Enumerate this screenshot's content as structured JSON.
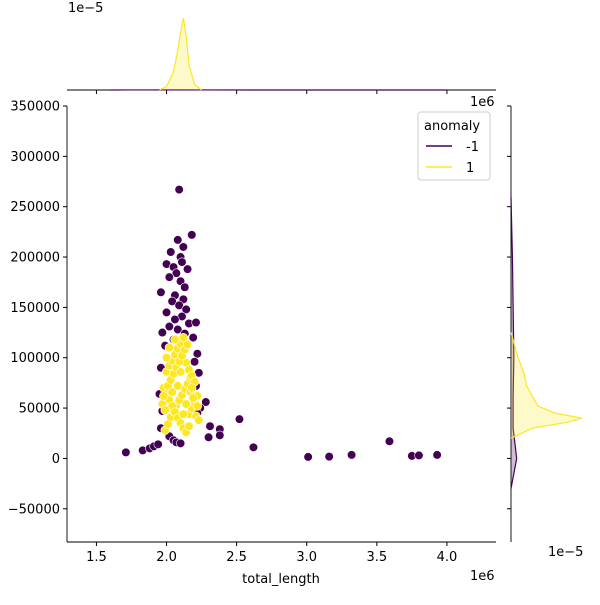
{
  "chart_data": {
    "type": "scatter",
    "subtype": "jointplot",
    "title": "",
    "xlabel": "total_length",
    "ylabel": "",
    "x_offset_label": "1e6",
    "y_offset_label_right": "1e6",
    "top_marginal_offset_label": "1e−5",
    "right_marginal_offset_label": "1e−5",
    "xlim": [
      1.29,
      4.35
    ],
    "ylim": [
      -83000,
      350000
    ],
    "xticks": [
      1.5,
      2.0,
      2.5,
      3.0,
      3.5,
      4.0
    ],
    "xtick_labels": [
      "1.5",
      "2.0",
      "2.5",
      "3.0",
      "3.5",
      "4.0"
    ],
    "yticks": [
      -50000,
      0,
      50000,
      100000,
      150000,
      200000,
      250000,
      300000,
      350000
    ],
    "ytick_labels": [
      "−50000",
      "0",
      "50000",
      "100000",
      "150000",
      "200000",
      "250000",
      "300000",
      "350000"
    ],
    "grid": false,
    "legend": {
      "title": "anomaly",
      "placement": "top-right",
      "entries": [
        {
          "label": "-1",
          "color": "#440154"
        },
        {
          "label": "1",
          "color": "#fde725"
        }
      ]
    },
    "series": [
      {
        "name": "-1",
        "color": "#440154",
        "points": [
          [
            1.71,
            6000
          ],
          [
            1.83,
            8000
          ],
          [
            1.88,
            10000
          ],
          [
            1.91,
            12000
          ],
          [
            1.94,
            14000
          ],
          [
            2.09,
            267000
          ],
          [
            2.18,
            222000
          ],
          [
            2.08,
            217000
          ],
          [
            2.12,
            210000
          ],
          [
            2.03,
            205000
          ],
          [
            2.1,
            200000
          ],
          [
            2.0,
            193000
          ],
          [
            2.11,
            195000
          ],
          [
            2.05,
            190000
          ],
          [
            2.15,
            188000
          ],
          [
            2.07,
            184000
          ],
          [
            2.02,
            180000
          ],
          [
            2.1,
            176000
          ],
          [
            2.13,
            170000
          ],
          [
            1.96,
            165000
          ],
          [
            2.06,
            162000
          ],
          [
            2.12,
            158000
          ],
          [
            2.04,
            156000
          ],
          [
            2.09,
            152000
          ],
          [
            2.14,
            148000
          ],
          [
            2.0,
            145000
          ],
          [
            2.11,
            141000
          ],
          [
            2.06,
            138000
          ],
          [
            2.16,
            134000
          ],
          [
            2.21,
            135000
          ],
          [
            2.02,
            131000
          ],
          [
            2.08,
            128000
          ],
          [
            1.97,
            125000
          ],
          [
            2.13,
            124000
          ],
          [
            2.19,
            120000
          ],
          [
            2.05,
            118000
          ],
          [
            1.99,
            112000
          ],
          [
            2.22,
            104000
          ],
          [
            2.2,
            96000
          ],
          [
            1.96,
            90000
          ],
          [
            2.23,
            85000
          ],
          [
            2.21,
            72000
          ],
          [
            1.95,
            64000
          ],
          [
            2.28,
            56000
          ],
          [
            2.24,
            50000
          ],
          [
            1.97,
            47000
          ],
          [
            2.22,
            45000
          ],
          [
            1.96,
            30000
          ],
          [
            2.02,
            22000
          ],
          [
            2.05,
            18000
          ],
          [
            2.07,
            16000
          ],
          [
            2.1,
            15000
          ],
          [
            2.31,
            32000
          ],
          [
            2.3,
            21000
          ],
          [
            2.38,
            29000
          ],
          [
            2.38,
            23000
          ],
          [
            2.52,
            39000
          ],
          [
            2.62,
            11000
          ],
          [
            3.01,
            1500
          ],
          [
            3.16,
            1800
          ],
          [
            3.32,
            3500
          ],
          [
            3.59,
            17000
          ],
          [
            3.75,
            2500
          ],
          [
            3.8,
            3000
          ],
          [
            3.93,
            3500
          ]
        ]
      },
      {
        "name": "1",
        "color": "#fde725",
        "points": [
          [
            1.99,
            28000
          ],
          [
            2.01,
            34000
          ],
          [
            2.03,
            41000
          ],
          [
            2.05,
            47000
          ],
          [
            2.07,
            53000
          ],
          [
            2.09,
            58000
          ],
          [
            2.11,
            63000
          ],
          [
            2.13,
            69000
          ],
          [
            2.15,
            74000
          ],
          [
            2.17,
            80000
          ],
          [
            2.0,
            86000
          ],
          [
            2.02,
            92000
          ],
          [
            2.04,
            97000
          ],
          [
            2.06,
            103000
          ],
          [
            2.08,
            109000
          ],
          [
            2.1,
            114000
          ],
          [
            2.12,
            120000
          ],
          [
            2.14,
            95000
          ],
          [
            2.16,
            88000
          ],
          [
            2.18,
            82000
          ],
          [
            2.2,
            76000
          ],
          [
            1.98,
            70000
          ],
          [
            2.0,
            64000
          ],
          [
            2.02,
            58000
          ],
          [
            2.04,
            52000
          ],
          [
            2.06,
            46000
          ],
          [
            2.08,
            40000
          ],
          [
            2.1,
            35000
          ],
          [
            2.12,
            30000
          ],
          [
            2.14,
            26000
          ],
          [
            2.16,
            44000
          ],
          [
            2.18,
            50000
          ],
          [
            2.2,
            56000
          ],
          [
            2.22,
            62000
          ],
          [
            1.97,
            54000
          ],
          [
            1.99,
            48000
          ],
          [
            2.01,
            72000
          ],
          [
            2.03,
            78000
          ],
          [
            2.05,
            84000
          ],
          [
            2.07,
            90000
          ],
          [
            2.09,
            96000
          ],
          [
            2.11,
            102000
          ],
          [
            2.13,
            108000
          ],
          [
            2.15,
            113000
          ],
          [
            2.17,
            66000
          ],
          [
            2.19,
            60000
          ],
          [
            2.21,
            42000
          ],
          [
            2.23,
            38000
          ],
          [
            2.0,
            100000
          ],
          [
            2.04,
            66000
          ],
          [
            2.08,
            72000
          ],
          [
            2.12,
            44000
          ],
          [
            2.16,
            32000
          ],
          [
            2.06,
            118000
          ],
          [
            2.1,
            86000
          ],
          [
            2.14,
            54000
          ],
          [
            2.18,
            70000
          ],
          [
            2.02,
            110000
          ],
          [
            1.98,
            62000
          ],
          [
            2.22,
            52000
          ]
        ]
      }
    ],
    "marginals": {
      "top": {
        "series": [
          {
            "name": "-1",
            "color": "#440154",
            "x": [
              1.6,
              1.9,
              2.0,
              2.1,
              2.2,
              2.3,
              2.6,
              3.0,
              3.5,
              4.0
            ],
            "density": [
              0.02,
              0.05,
              0.12,
              0.14,
              0.1,
              0.05,
              0.02,
              0.01,
              0.01,
              0.0
            ]
          },
          {
            "name": "1",
            "color": "#fde725",
            "x": [
              1.95,
              2.0,
              2.05,
              2.08,
              2.1,
              2.12,
              2.14,
              2.16,
              2.2,
              2.25
            ],
            "density": [
              0.0,
              0.05,
              0.25,
              0.55,
              0.8,
              1.0,
              0.75,
              0.35,
              0.08,
              0.0
            ]
          }
        ]
      },
      "right": {
        "series": [
          {
            "name": "-1",
            "color": "#440154",
            "y": [
              -30000,
              0,
              30000,
              60000,
              100000,
              150000,
              200000,
              260000
            ],
            "density": [
              0.0,
              0.08,
              0.03,
              0.03,
              0.04,
              0.03,
              0.02,
              0.0
            ]
          },
          {
            "name": "1",
            "color": "#fde725",
            "y": [
              20000,
              30000,
              36000,
              40000,
              45000,
              52000,
              62000,
              72000,
              85000,
              100000,
              115000,
              125000
            ],
            "density": [
              0.0,
              0.3,
              0.8,
              1.0,
              0.62,
              0.38,
              0.3,
              0.22,
              0.18,
              0.1,
              0.04,
              0.0
            ]
          }
        ]
      }
    }
  }
}
